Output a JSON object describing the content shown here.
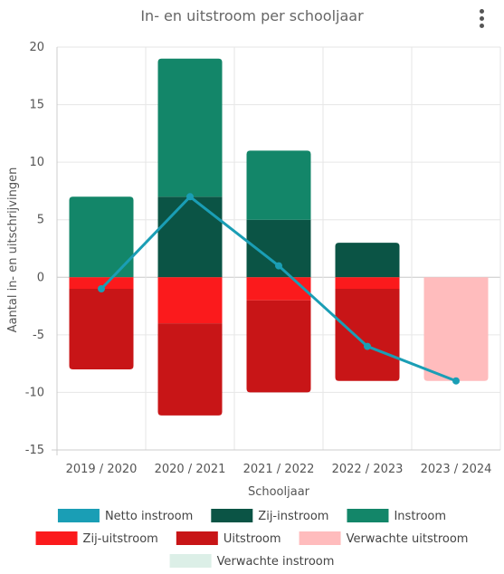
{
  "header": {
    "menu_icon": "kebab-vertical-icon"
  },
  "chart_data": {
    "type": "bar",
    "title": "In- en uitstroom per schooljaar",
    "xlabel": "Schooljaar",
    "ylabel": "Aantal in- en uitschrijvingen",
    "ylim": [
      -15,
      20
    ],
    "yticks": [
      -15,
      -10,
      -5,
      0,
      5,
      10,
      15,
      20
    ],
    "grid": true,
    "legend_position": "bottom",
    "stacked": true,
    "categories": [
      "2019 / 2020",
      "2020 / 2021",
      "2021 / 2022",
      "2022 / 2023",
      "2023 / 2024"
    ],
    "series": [
      {
        "name": "Netto instroom",
        "type": "line",
        "color": "#1a9eb5",
        "values": [
          -1,
          7,
          1,
          -6,
          -9
        ]
      },
      {
        "name": "Zij-instroom",
        "type": "bar",
        "color": "#0b5445",
        "values": [
          0,
          7,
          5,
          3,
          0
        ]
      },
      {
        "name": "Instroom",
        "type": "bar",
        "color": "#138669",
        "values": [
          7,
          12,
          6,
          0,
          0
        ]
      },
      {
        "name": "Zij-uitstroom",
        "type": "bar",
        "color": "#fb1a1c",
        "values": [
          -1,
          -4,
          -2,
          -1,
          0
        ]
      },
      {
        "name": "Uitstroom",
        "type": "bar",
        "color": "#c81517",
        "values": [
          -7,
          -8,
          -8,
          -8,
          0
        ]
      },
      {
        "name": "Verwachte uitstroom",
        "type": "bar",
        "color": "#ffbcbd",
        "values": [
          0,
          0,
          0,
          0,
          -9
        ]
      },
      {
        "name": "Verwachte instroom",
        "type": "bar",
        "color": "#dcefe7",
        "values": [
          0,
          0,
          0,
          0,
          0
        ]
      }
    ]
  }
}
